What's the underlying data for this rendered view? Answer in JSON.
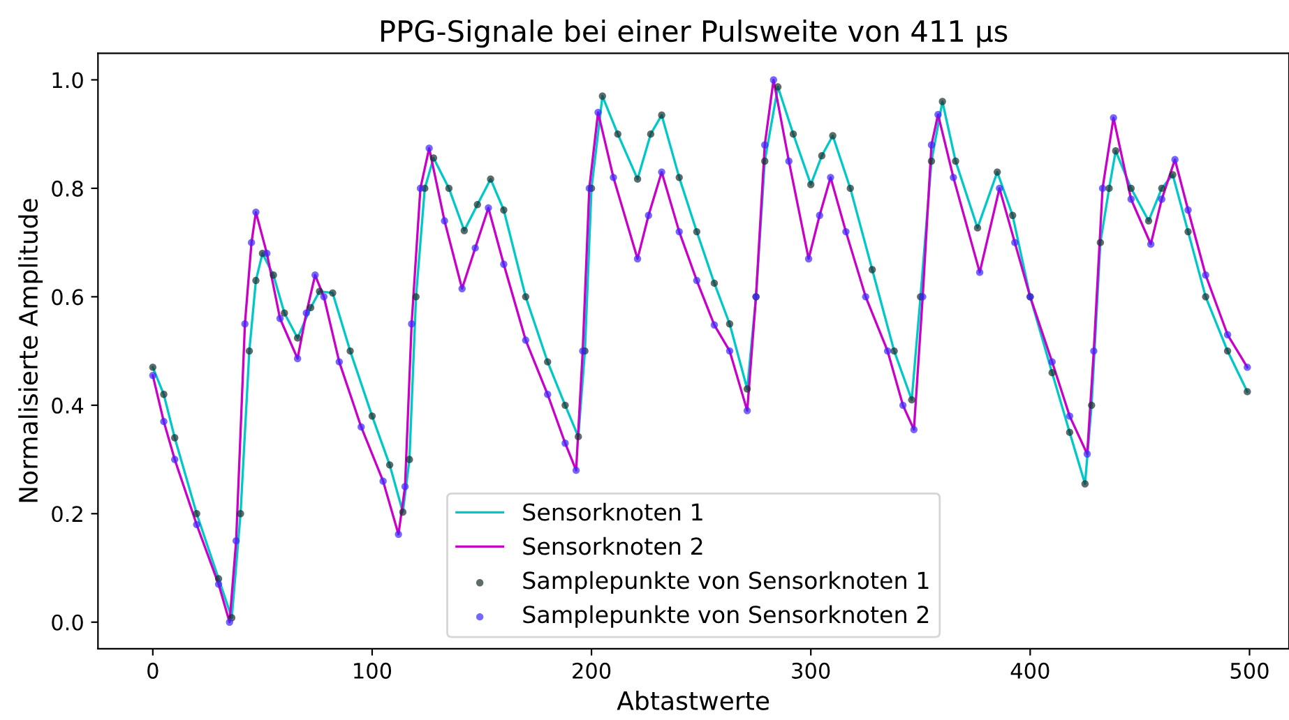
{
  "chart_data": {
    "type": "line",
    "title": "PPG-Signale bei einer Pulsweite von 411 µs",
    "xlabel": "Abtastwerte",
    "ylabel": "Normalisierte Amplitude",
    "xlim": [
      -25,
      518
    ],
    "ylim": [
      -0.049,
      1.049
    ],
    "xticks": [
      0,
      100,
      200,
      300,
      400,
      500
    ],
    "yticks": [
      {
        "value": 0,
        "label": "0.0"
      },
      {
        "value": 0.2,
        "label": "0.2"
      },
      {
        "value": 0.4,
        "label": "0.4"
      },
      {
        "value": 0.6,
        "label": "0.6"
      },
      {
        "value": 0.8,
        "label": "0.8"
      },
      {
        "value": 1.0,
        "label": "1.0"
      }
    ],
    "grid": false,
    "legend": "bottom",
    "series": [
      {
        "name": "Sensorknoten 1",
        "type": "line",
        "color": "#00c8c8",
        "x": [
          0,
          5,
          10,
          20,
          30,
          36,
          40,
          44,
          47,
          50,
          55,
          60,
          66,
          72,
          76,
          82,
          90,
          100,
          108,
          114,
          117,
          120,
          124,
          128,
          135,
          142,
          148,
          154,
          160,
          170,
          180,
          188,
          194,
          197,
          200,
          205,
          212,
          221,
          227,
          232,
          240,
          248,
          256,
          263,
          271,
          275,
          279,
          285,
          292,
          300,
          305,
          310,
          318,
          328,
          338,
          346,
          350,
          355,
          360,
          366,
          376,
          385,
          392,
          400,
          410,
          418,
          425,
          428,
          432,
          436,
          439,
          446,
          454,
          460,
          465,
          472,
          480,
          490,
          499
        ],
        "values": [
          0.47,
          0.42,
          0.34,
          0.2,
          0.08,
          0.008,
          0.2,
          0.5,
          0.63,
          0.68,
          0.64,
          0.57,
          0.524,
          0.58,
          0.61,
          0.607,
          0.5,
          0.38,
          0.29,
          0.203,
          0.3,
          0.6,
          0.8,
          0.856,
          0.8,
          0.722,
          0.77,
          0.817,
          0.76,
          0.6,
          0.48,
          0.4,
          0.342,
          0.5,
          0.8,
          0.97,
          0.9,
          0.817,
          0.9,
          0.935,
          0.82,
          0.72,
          0.625,
          0.55,
          0.43,
          0.6,
          0.85,
          0.987,
          0.9,
          0.807,
          0.86,
          0.897,
          0.8,
          0.65,
          0.5,
          0.41,
          0.6,
          0.85,
          0.96,
          0.85,
          0.727,
          0.83,
          0.75,
          0.6,
          0.46,
          0.35,
          0.255,
          0.4,
          0.7,
          0.8,
          0.869,
          0.8,
          0.74,
          0.8,
          0.825,
          0.72,
          0.6,
          0.5,
          0.425
        ]
      },
      {
        "name": "Sensorknoten 2",
        "type": "line",
        "color": "#c800c8",
        "x": [
          0,
          5,
          10,
          20,
          30,
          35,
          38,
          42,
          45,
          47,
          52,
          58,
          66,
          70,
          74,
          78,
          85,
          95,
          105,
          112,
          115,
          118,
          122,
          126,
          133,
          141,
          147,
          153,
          160,
          170,
          180,
          188,
          193,
          196,
          199,
          203,
          210,
          221,
          226,
          232,
          240,
          248,
          256,
          263,
          271,
          275,
          279,
          283,
          290,
          299,
          304,
          309,
          316,
          325,
          335,
          342,
          347,
          351,
          355,
          358,
          365,
          377,
          386,
          393,
          400,
          410,
          418,
          426,
          429,
          433,
          438,
          446,
          455,
          460,
          466,
          472,
          480,
          490,
          499
        ],
        "values": [
          0.455,
          0.37,
          0.3,
          0.18,
          0.07,
          0.0,
          0.15,
          0.55,
          0.7,
          0.756,
          0.68,
          0.56,
          0.486,
          0.57,
          0.64,
          0.6,
          0.48,
          0.36,
          0.26,
          0.162,
          0.25,
          0.55,
          0.8,
          0.874,
          0.74,
          0.615,
          0.69,
          0.764,
          0.66,
          0.52,
          0.42,
          0.33,
          0.28,
          0.5,
          0.8,
          0.94,
          0.82,
          0.67,
          0.75,
          0.83,
          0.72,
          0.63,
          0.548,
          0.5,
          0.39,
          0.6,
          0.88,
          1.0,
          0.85,
          0.67,
          0.75,
          0.82,
          0.72,
          0.6,
          0.5,
          0.4,
          0.355,
          0.6,
          0.88,
          0.936,
          0.82,
          0.645,
          0.8,
          0.7,
          0.6,
          0.48,
          0.38,
          0.31,
          0.5,
          0.8,
          0.93,
          0.78,
          0.697,
          0.78,
          0.853,
          0.76,
          0.64,
          0.53,
          0.47
        ]
      },
      {
        "name": "Samplepunkte von Sensorknoten 1",
        "type": "scatter",
        "marker": "circle",
        "color": "#1a2e2e",
        "x": [
          0,
          5,
          10,
          20,
          30,
          36,
          40,
          44,
          47,
          50,
          55,
          60,
          66,
          72,
          76,
          82,
          90,
          100,
          108,
          114,
          117,
          120,
          124,
          128,
          135,
          142,
          148,
          154,
          160,
          170,
          180,
          188,
          194,
          197,
          200,
          205,
          212,
          221,
          227,
          232,
          240,
          248,
          256,
          263,
          271,
          275,
          279,
          285,
          292,
          300,
          305,
          310,
          318,
          328,
          338,
          346,
          350,
          355,
          360,
          366,
          376,
          385,
          392,
          400,
          410,
          418,
          425,
          428,
          432,
          436,
          439,
          446,
          454,
          460,
          465,
          472,
          480,
          490,
          499
        ],
        "values": [
          0.47,
          0.42,
          0.34,
          0.2,
          0.08,
          0.008,
          0.2,
          0.5,
          0.63,
          0.68,
          0.64,
          0.57,
          0.524,
          0.58,
          0.61,
          0.607,
          0.5,
          0.38,
          0.29,
          0.203,
          0.3,
          0.6,
          0.8,
          0.856,
          0.8,
          0.722,
          0.77,
          0.817,
          0.76,
          0.6,
          0.48,
          0.4,
          0.342,
          0.5,
          0.8,
          0.97,
          0.9,
          0.817,
          0.9,
          0.935,
          0.82,
          0.72,
          0.625,
          0.55,
          0.43,
          0.6,
          0.85,
          0.987,
          0.9,
          0.807,
          0.86,
          0.897,
          0.8,
          0.65,
          0.5,
          0.41,
          0.6,
          0.85,
          0.96,
          0.85,
          0.727,
          0.83,
          0.75,
          0.6,
          0.46,
          0.35,
          0.255,
          0.4,
          0.7,
          0.8,
          0.869,
          0.8,
          0.74,
          0.8,
          0.825,
          0.72,
          0.6,
          0.5,
          0.425
        ]
      },
      {
        "name": "Samplepunkte von Sensorknoten 2",
        "type": "scatter",
        "marker": "circle",
        "color": "#3c28ff",
        "x": [
          0,
          5,
          10,
          20,
          30,
          35,
          38,
          42,
          45,
          47,
          52,
          58,
          66,
          70,
          74,
          78,
          85,
          95,
          105,
          112,
          115,
          118,
          122,
          126,
          133,
          141,
          147,
          153,
          160,
          170,
          180,
          188,
          193,
          196,
          199,
          203,
          210,
          221,
          226,
          232,
          240,
          248,
          256,
          263,
          271,
          275,
          279,
          283,
          290,
          299,
          304,
          309,
          316,
          325,
          335,
          342,
          347,
          351,
          355,
          358,
          365,
          377,
          386,
          393,
          400,
          410,
          418,
          426,
          429,
          433,
          438,
          446,
          455,
          460,
          466,
          472,
          480,
          490,
          499
        ],
        "values": [
          0.455,
          0.37,
          0.3,
          0.18,
          0.07,
          0.0,
          0.15,
          0.55,
          0.7,
          0.756,
          0.68,
          0.56,
          0.486,
          0.57,
          0.64,
          0.6,
          0.48,
          0.36,
          0.26,
          0.162,
          0.25,
          0.55,
          0.8,
          0.874,
          0.74,
          0.615,
          0.69,
          0.764,
          0.66,
          0.52,
          0.42,
          0.33,
          0.28,
          0.5,
          0.8,
          0.94,
          0.82,
          0.67,
          0.75,
          0.83,
          0.72,
          0.63,
          0.548,
          0.5,
          0.39,
          0.6,
          0.88,
          1.0,
          0.85,
          0.67,
          0.75,
          0.82,
          0.72,
          0.6,
          0.5,
          0.4,
          0.355,
          0.6,
          0.88,
          0.936,
          0.82,
          0.645,
          0.8,
          0.7,
          0.6,
          0.48,
          0.38,
          0.31,
          0.5,
          0.8,
          0.93,
          0.78,
          0.697,
          0.78,
          0.853,
          0.76,
          0.64,
          0.53,
          0.47
        ]
      }
    ]
  }
}
